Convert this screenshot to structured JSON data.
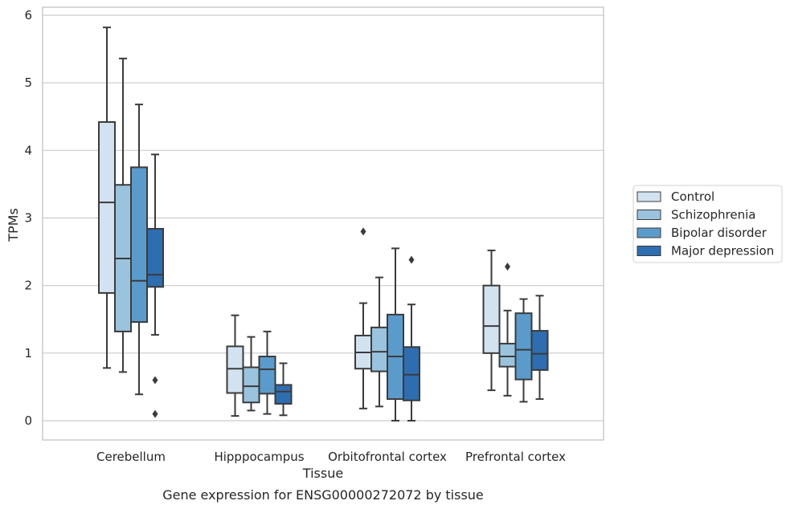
{
  "chart_data": {
    "type": "box",
    "caption": "Gene expression for ENSG00000272072 by tissue",
    "xlabel": "Tissue",
    "ylabel": "TPMs",
    "ylim": [
      -0.28,
      6.1
    ],
    "yticks": [
      0,
      1,
      2,
      3,
      4,
      5,
      6
    ],
    "grid": "horizontal",
    "legend_position": "right",
    "categories": [
      "Cerebellum",
      "Hipppocampus",
      "Orbitofrontal cortex",
      "Prefrontal cortex"
    ],
    "series": [
      {
        "name": "Control",
        "color": "#d3e2f1",
        "boxes": [
          {
            "min": 0.78,
            "q1": 1.89,
            "median": 3.23,
            "q3": 4.42,
            "max": 5.82,
            "outliers": []
          },
          {
            "min": 0.07,
            "q1": 0.41,
            "median": 0.77,
            "q3": 1.1,
            "max": 1.56,
            "outliers": []
          },
          {
            "min": 0.18,
            "q1": 0.77,
            "median": 1.01,
            "q3": 1.26,
            "max": 1.74,
            "outliers": [
              2.8
            ]
          },
          {
            "min": 0.45,
            "q1": 1.0,
            "median": 1.4,
            "q3": 2.0,
            "max": 2.52,
            "outliers": []
          }
        ]
      },
      {
        "name": "Schizophrenia",
        "color": "#9ac3de",
        "boxes": [
          {
            "min": 0.72,
            "q1": 1.32,
            "median": 2.4,
            "q3": 3.49,
            "max": 5.36,
            "outliers": []
          },
          {
            "min": 0.15,
            "q1": 0.27,
            "median": 0.51,
            "q3": 0.79,
            "max": 1.24,
            "outliers": []
          },
          {
            "min": 0.21,
            "q1": 0.73,
            "median": 1.02,
            "q3": 1.38,
            "max": 2.12,
            "outliers": []
          },
          {
            "min": 0.37,
            "q1": 0.8,
            "median": 0.95,
            "q3": 1.14,
            "max": 1.63,
            "outliers": [
              2.28
            ]
          }
        ]
      },
      {
        "name": "Bipolar disorder",
        "color": "#5b9bcb",
        "boxes": [
          {
            "min": 0.39,
            "q1": 1.46,
            "median": 2.07,
            "q3": 3.75,
            "max": 4.68,
            "outliers": []
          },
          {
            "min": 0.1,
            "q1": 0.4,
            "median": 0.76,
            "q3": 0.95,
            "max": 1.32,
            "outliers": []
          },
          {
            "min": 0.0,
            "q1": 0.32,
            "median": 0.95,
            "q3": 1.57,
            "max": 2.55,
            "outliers": []
          },
          {
            "min": 0.28,
            "q1": 0.61,
            "median": 1.05,
            "q3": 1.59,
            "max": 1.8,
            "outliers": []
          }
        ]
      },
      {
        "name": "Major depression",
        "color": "#2e6daf",
        "boxes": [
          {
            "min": 1.27,
            "q1": 1.98,
            "median": 2.16,
            "q3": 2.84,
            "max": 3.94,
            "outliers": [
              0.6,
              0.1
            ]
          },
          {
            "min": 0.08,
            "q1": 0.25,
            "median": 0.43,
            "q3": 0.53,
            "max": 0.85,
            "outliers": []
          },
          {
            "min": 0.0,
            "q1": 0.3,
            "median": 0.68,
            "q3": 1.09,
            "max": 1.72,
            "outliers": [
              2.38
            ]
          },
          {
            "min": 0.32,
            "q1": 0.75,
            "median": 0.99,
            "q3": 1.33,
            "max": 1.85,
            "outliers": []
          }
        ]
      }
    ]
  }
}
